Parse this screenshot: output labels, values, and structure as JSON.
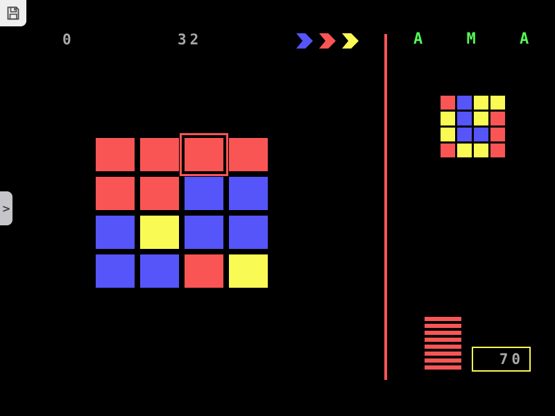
{
  "palette": {
    "red": "#fa5555",
    "blue": "#5555fa",
    "yellow": "#fafa55",
    "green": "#55fa55",
    "gray": "#a8a8a8"
  },
  "toolbar": {
    "save_icon": "floppy-disk"
  },
  "hud": {
    "left_counter": "0",
    "right_counter": "32"
  },
  "sequence_arrows": [
    {
      "name": "blue-arrow",
      "color": "blue"
    },
    {
      "name": "red-arrow",
      "color": "red"
    },
    {
      "name": "yellow-arrow",
      "color": "yellow"
    }
  ],
  "title": {
    "text": "A M A D O",
    "color": "green"
  },
  "divider": {
    "color": "red"
  },
  "goal_grid": {
    "rows": [
      [
        "red",
        "blue",
        "yellow",
        "yellow"
      ],
      [
        "yellow",
        "blue",
        "yellow",
        "red"
      ],
      [
        "yellow",
        "blue",
        "blue",
        "red"
      ],
      [
        "red",
        "yellow",
        "yellow",
        "red"
      ]
    ]
  },
  "board_grid": {
    "rows": [
      [
        "red",
        "red",
        "red",
        "red"
      ],
      [
        "red",
        "red",
        "blue",
        "blue"
      ],
      [
        "blue",
        "yellow",
        "blue",
        "blue"
      ],
      [
        "blue",
        "blue",
        "red",
        "yellow"
      ]
    ],
    "cursor": {
      "row": 0,
      "col": 2,
      "color": "red"
    }
  },
  "progress_stack": {
    "count": 8,
    "color": "red"
  },
  "score_box": {
    "value": "70",
    "border_color": "yellow",
    "text_color": "gray"
  },
  "sidebar_toggle": {
    "glyph": ">"
  }
}
